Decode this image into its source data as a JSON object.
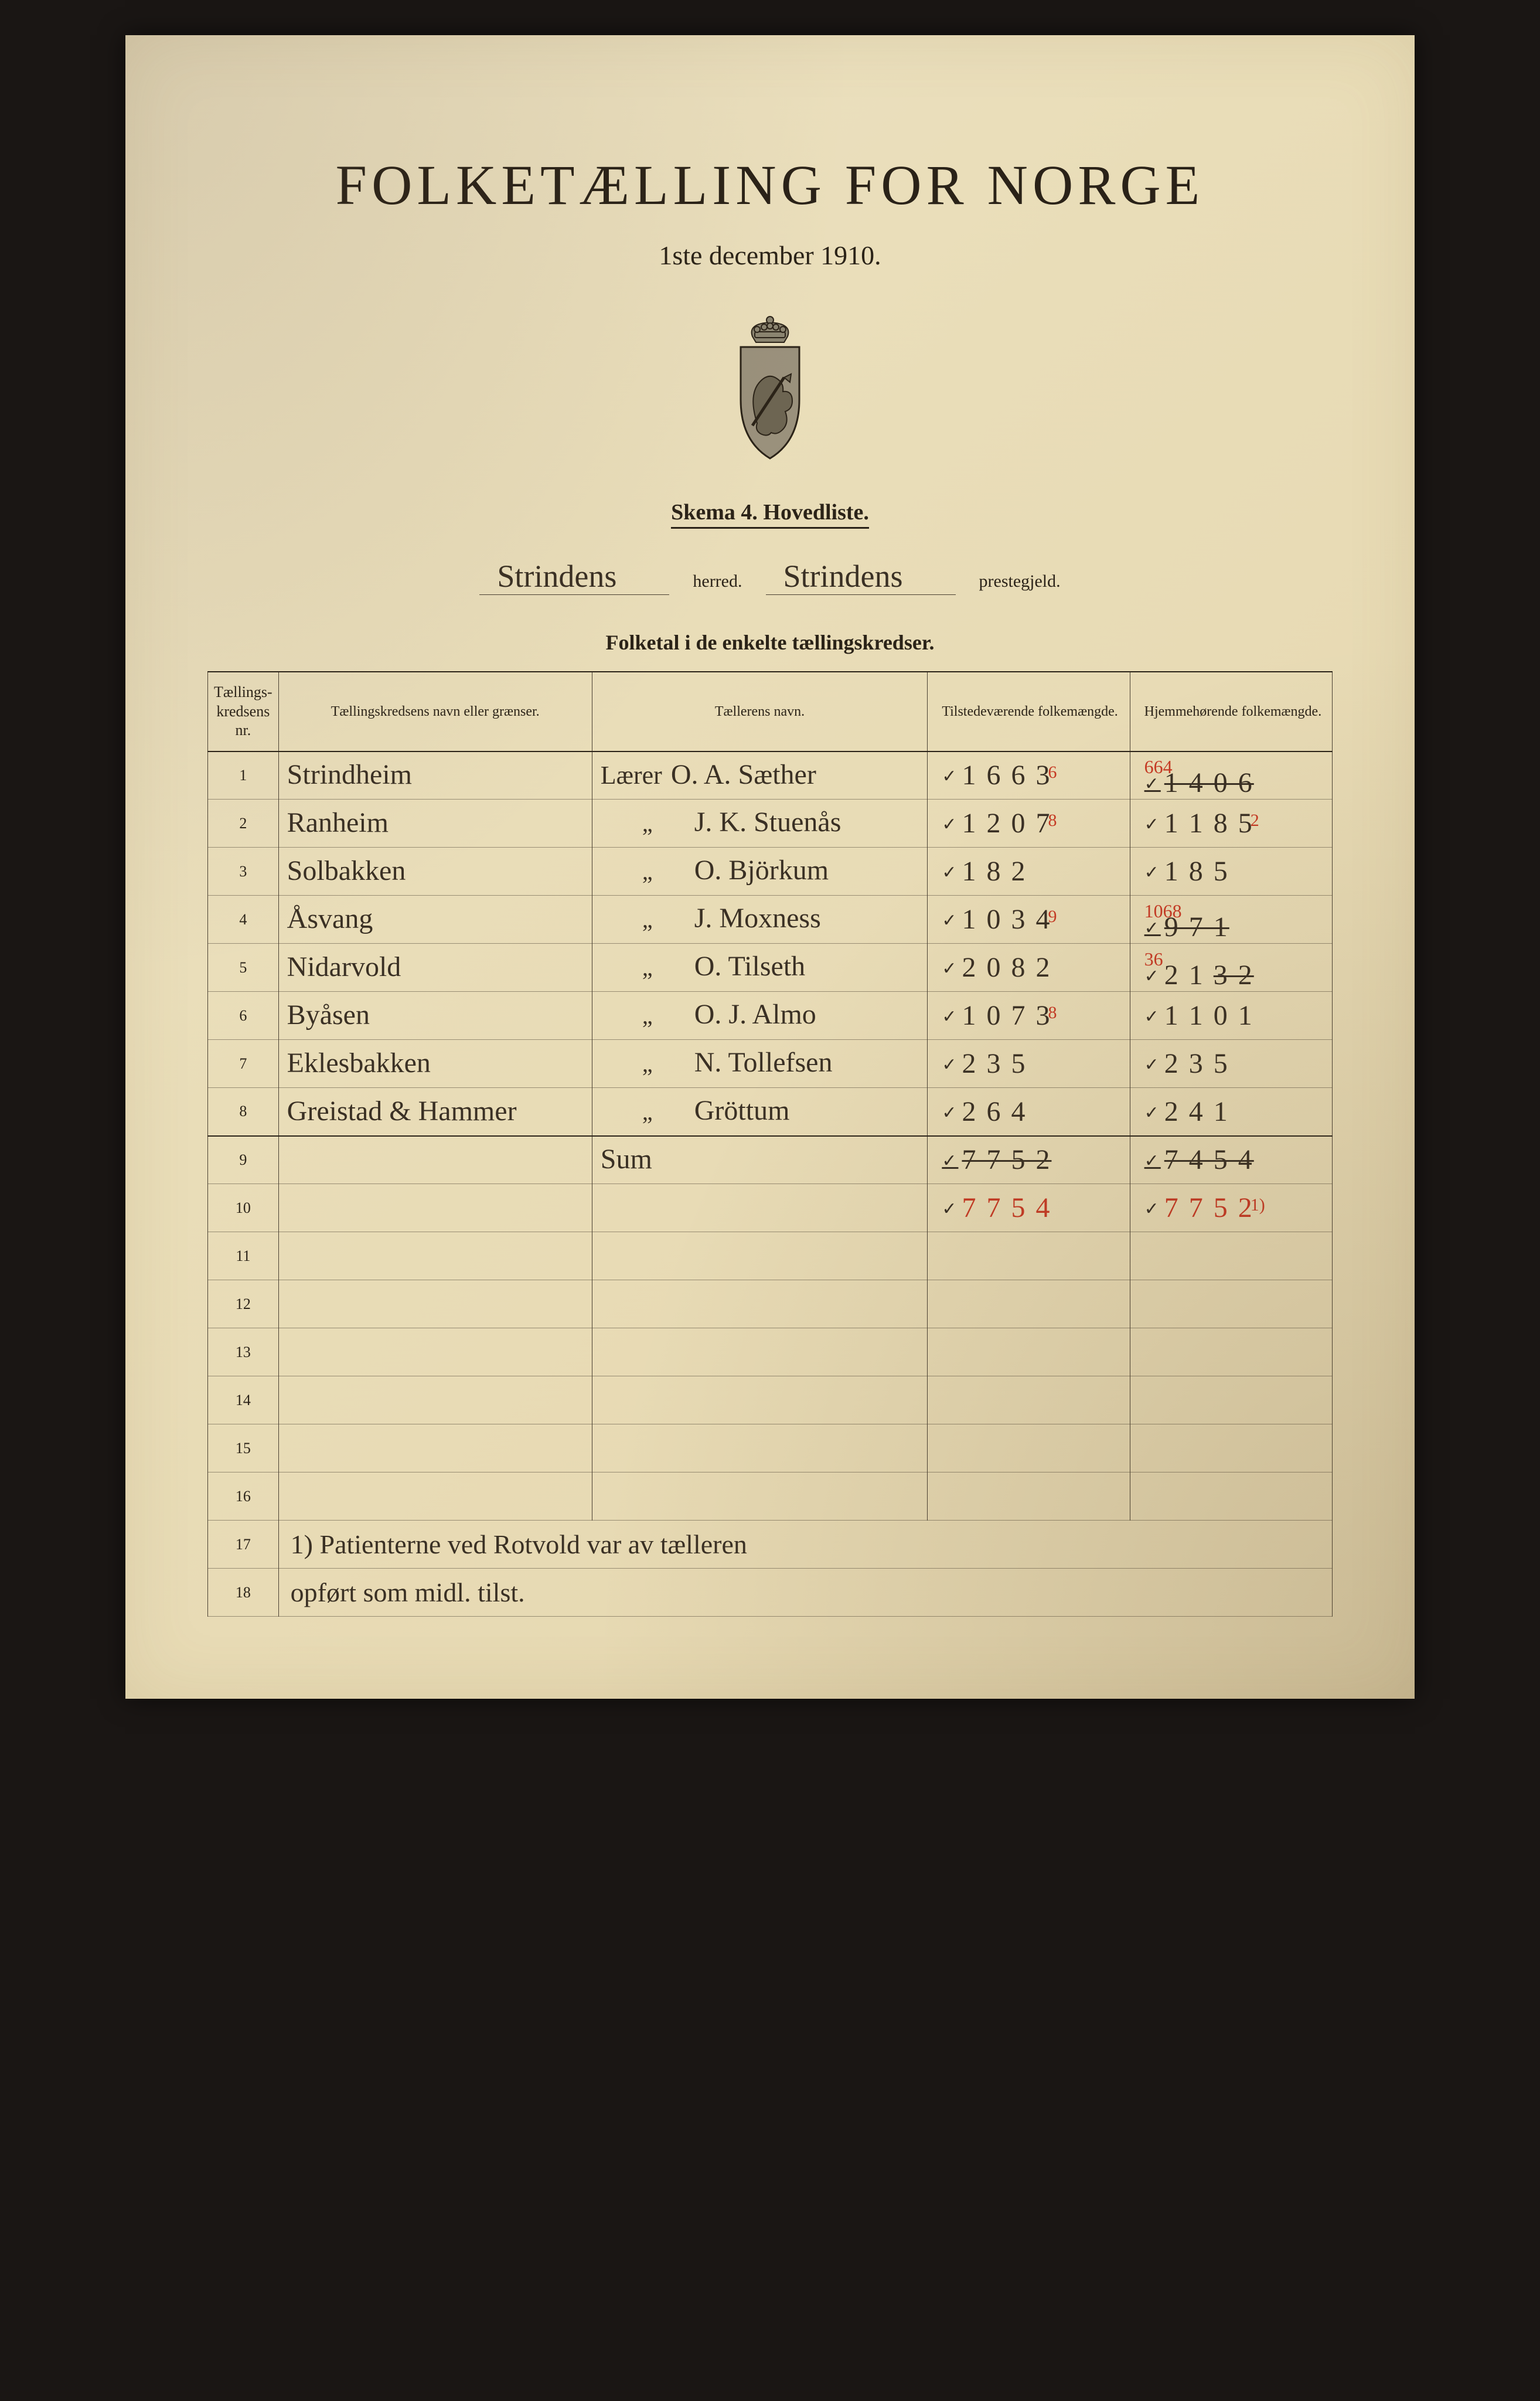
{
  "title": "FOLKETÆLLING FOR NORGE",
  "date": "1ste december 1910.",
  "skema": "Skema 4.   Hovedliste.",
  "herred_value": "Strindens",
  "herred_label": "herred.",
  "prestegjeld_value": "Strindens",
  "prestegjeld_label": "prestegjeld.",
  "subheader": "Folketal i de enkelte tællingskredser.",
  "columns": {
    "nr": "Tællings-\nkredsens nr.",
    "name": "Tællingskredsens navn eller grænser.",
    "teller": "Tællerens navn.",
    "present": "Tilstedeværende\nfolkemængde.",
    "home": "Hjemmehørende\nfolkemængde."
  },
  "rows": [
    {
      "nr": "1",
      "name": "Strindheim",
      "teller_title": "Lærer",
      "teller_name": "O. A. Sæther",
      "present": "1 6 6 3",
      "present_sup": "6",
      "home_top": "664",
      "home": "1 4 0 6",
      "home_strike": true
    },
    {
      "nr": "2",
      "name": "Ranheim",
      "teller_title": "„",
      "teller_name": "J. K. Stuenås",
      "present": "1 2 0 7",
      "present_sup": "8",
      "home": "1 1 8 5",
      "home_sup": "2"
    },
    {
      "nr": "3",
      "name": "Solbakken",
      "teller_title": "„",
      "teller_name": "O. Björkum",
      "present": "1 8 2",
      "home": "1 8 5"
    },
    {
      "nr": "4",
      "name": "Åsvang",
      "teller_title": "„",
      "teller_name": "J. Moxness",
      "present": "1 0 3 4",
      "present_sup": "9",
      "home_top": "1068",
      "home": "9 7 1",
      "home_strike": true
    },
    {
      "nr": "5",
      "name": "Nidarvold",
      "teller_title": "„",
      "teller_name": "O. Tilseth",
      "present": "2 0 8 2",
      "home_top": "36",
      "home": "2 1 3 2",
      "home_partial_strike": true
    },
    {
      "nr": "6",
      "name": "Byåsen",
      "teller_title": "„",
      "teller_name": "O. J. Almo",
      "present": "1 0 7 3",
      "present_sup": "8",
      "home": "1 1 0 1"
    },
    {
      "nr": "7",
      "name": "Eklesbakken",
      "teller_title": "„",
      "teller_name": "N. Tollefsen",
      "present": "2 3 5",
      "home": "2 3 5"
    },
    {
      "nr": "8",
      "name": "Greistad & Hammer",
      "teller_title": "„",
      "teller_name": "Gröttum",
      "present": "2 6 4",
      "home": "2 4 1"
    },
    {
      "nr": "9",
      "name": "",
      "teller_title": "",
      "teller_name": "Sum",
      "present": "7 7 5 2",
      "present_strike": true,
      "home": "7 4 5 4",
      "home_strike": true,
      "sum_row": true
    },
    {
      "nr": "10",
      "name": "",
      "teller_title": "",
      "teller_name": "",
      "present": "7 7 5 4",
      "present_red": true,
      "home": "7 7 5 2",
      "home_red": true,
      "home_sup": "1)"
    }
  ],
  "blank_rows": [
    "11",
    "12",
    "13",
    "14",
    "15",
    "16"
  ],
  "note_rows": [
    {
      "nr": "17",
      "text": "1) Patienterne ved Rotvold var av tælleren"
    },
    {
      "nr": "18",
      "text": "opført som midl. tilst."
    }
  ],
  "colors": {
    "paper": "#e9ddb8",
    "ink": "#3a3024",
    "red_ink": "#c63a24",
    "rule": "#4a4032",
    "background": "#1a1614"
  },
  "crest": {
    "shield_fill": "#9a917c",
    "shield_stroke": "#2b2318",
    "crown_fill": "#8b8470"
  }
}
